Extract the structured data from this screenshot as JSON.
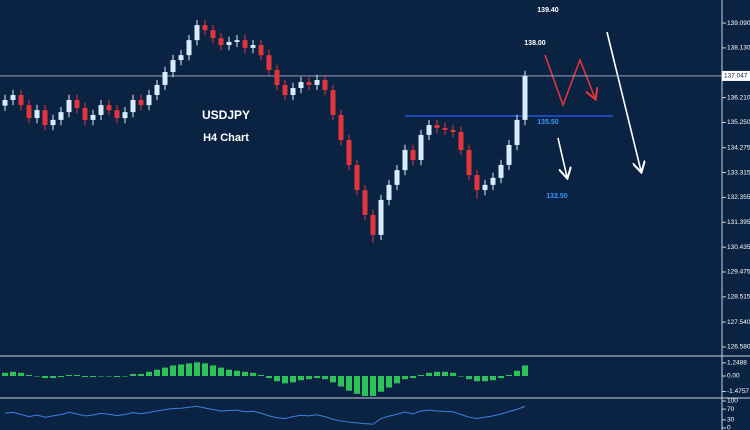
{
  "chart_data": [
    {
      "type": "candlestick",
      "annotations": [
        "USDJPY",
        "H4 Chart",
        "139.40",
        "138.00",
        "135.50",
        "132.50"
      ],
      "open": [
        135.9,
        136.12,
        136.31,
        135.92,
        135.42,
        135.73,
        135.15,
        135.35,
        135.65,
        136.12,
        135.81,
        135.35,
        135.54,
        135.92,
        135.73,
        135.42,
        135.65,
        136.12,
        135.92,
        136.31,
        136.7,
        137.2,
        137.66,
        137.85,
        138.43,
        139.01,
        138.82,
        138.51,
        138.24,
        138.36,
        138.43,
        138.13,
        138.24,
        137.85,
        137.28,
        136.7,
        136.31,
        136.58,
        136.81,
        136.7,
        136.89,
        136.5,
        135.54,
        134.57,
        133.61,
        132.64,
        131.68,
        130.91,
        132.26,
        132.84,
        133.41,
        134.19,
        133.8,
        134.77,
        135.15,
        135.04,
        134.96,
        134.88,
        134.19,
        133.22,
        132.64,
        132.84,
        133.11,
        133.61,
        134.38,
        135.35
      ],
      "high": [
        136.32,
        136.51,
        136.51,
        136.12,
        135.93,
        135.93,
        135.55,
        135.85,
        136.32,
        136.32,
        136.01,
        135.74,
        136.12,
        136.12,
        135.93,
        135.85,
        136.32,
        136.32,
        136.51,
        136.9,
        137.4,
        137.86,
        138.05,
        138.63,
        139.21,
        139.21,
        139.02,
        138.71,
        138.56,
        138.63,
        138.63,
        138.44,
        138.44,
        138.05,
        137.48,
        136.9,
        136.78,
        137.01,
        137.01,
        137.09,
        137.09,
        136.7,
        135.74,
        134.77,
        133.81,
        132.84,
        131.88,
        132.46,
        133.04,
        133.61,
        134.39,
        134.39,
        134.97,
        135.35,
        135.35,
        135.24,
        135.16,
        135.08,
        134.39,
        133.42,
        133.04,
        133.31,
        133.81,
        134.58,
        135.55,
        137.25
      ],
      "low": [
        135.7,
        135.92,
        135.72,
        135.22,
        135.22,
        134.95,
        134.95,
        135.15,
        135.45,
        135.61,
        135.15,
        135.15,
        135.34,
        135.53,
        135.22,
        135.22,
        135.45,
        135.72,
        135.72,
        136.11,
        136.5,
        137.0,
        137.46,
        137.65,
        138.23,
        138.62,
        138.31,
        138.04,
        138.04,
        138.16,
        137.93,
        137.93,
        137.65,
        137.08,
        136.5,
        136.11,
        136.11,
        136.38,
        136.5,
        136.5,
        136.3,
        135.34,
        134.37,
        133.41,
        132.44,
        131.48,
        130.6,
        130.71,
        132.06,
        132.64,
        133.21,
        133.6,
        133.6,
        134.57,
        134.84,
        134.76,
        134.68,
        133.99,
        133.02,
        132.3,
        132.44,
        132.64,
        132.91,
        133.41,
        134.18,
        135.15
      ],
      "close": [
        136.12,
        136.31,
        135.92,
        135.42,
        135.73,
        135.15,
        135.35,
        135.65,
        136.12,
        135.81,
        135.35,
        135.54,
        135.92,
        135.73,
        135.42,
        135.65,
        136.12,
        135.92,
        136.31,
        136.7,
        137.2,
        137.66,
        137.85,
        138.43,
        139.01,
        138.82,
        138.51,
        138.24,
        138.36,
        138.43,
        138.13,
        138.24,
        137.85,
        137.28,
        136.7,
        136.31,
        136.58,
        136.81,
        136.7,
        136.89,
        136.5,
        135.54,
        134.57,
        133.61,
        132.64,
        131.68,
        130.91,
        132.26,
        132.84,
        133.41,
        134.19,
        133.8,
        134.77,
        135.15,
        135.04,
        134.96,
        134.88,
        134.19,
        133.22,
        132.64,
        132.84,
        133.11,
        133.61,
        134.38,
        135.35,
        137.05
      ],
      "up_color": "#d8ecff",
      "down_color": "#e0353a",
      "current_price": 137.047,
      "ylim": [
        126.27,
        139.98
      ],
      "yticks": [
        {
          "value": 139.09,
          "label": "139.090"
        },
        {
          "value": 138.13,
          "label": "138.130"
        },
        {
          "value": 136.21,
          "label": "136.210"
        },
        {
          "value": 135.25,
          "label": "135.250"
        },
        134.275,
        133.315,
        132.355,
        131.395,
        130.435,
        129.475,
        128.515,
        {
          "value": 127.54,
          "label": "127.540"
        },
        {
          "value": 126.58,
          "label": "126.580"
        }
      ]
    },
    {
      "type": "bar",
      "values": [
        0.3,
        0.4,
        0.3,
        0.1,
        0.0,
        -0.2,
        -0.2,
        -0.1,
        0.1,
        0.1,
        -0.1,
        -0.1,
        0.0,
        0.0,
        -0.1,
        0.0,
        0.2,
        0.2,
        0.4,
        0.6,
        0.8,
        1.0,
        1.1,
        1.2,
        1.3,
        1.2,
        1.0,
        0.8,
        0.6,
        0.5,
        0.4,
        0.3,
        0.1,
        -0.2,
        -0.5,
        -0.7,
        -0.6,
        -0.4,
        -0.3,
        -0.2,
        -0.3,
        -0.6,
        -1.0,
        -1.4,
        -1.7,
        -1.9,
        -1.9,
        -1.5,
        -1.1,
        -0.7,
        -0.3,
        -0.2,
        0.1,
        0.3,
        0.4,
        0.4,
        0.3,
        0.0,
        -0.3,
        -0.5,
        -0.5,
        -0.4,
        -0.2,
        0.1,
        0.5,
        1.0
      ],
      "color": "#2fc25b",
      "ylim": [
        -2.0,
        1.81
      ],
      "yticks": [
        1.2488,
        {
          "value": 0,
          "label": "0.00"
        },
        -1.4757
      ]
    },
    {
      "type": "line",
      "values": [
        55,
        58,
        50,
        42,
        48,
        40,
        45,
        50,
        58,
        52,
        45,
        48,
        54,
        51,
        46,
        50,
        57,
        53,
        58,
        63,
        68,
        72,
        73,
        77,
        80,
        74,
        68,
        63,
        65,
        66,
        60,
        62,
        55,
        45,
        38,
        35,
        42,
        47,
        45,
        49,
        42,
        32,
        26,
        22,
        19,
        16,
        14,
        35,
        44,
        51,
        59,
        52,
        63,
        66,
        63,
        61,
        60,
        50,
        40,
        35,
        40,
        45,
        52,
        61,
        69,
        80
      ],
      "color": "#3d7fe0",
      "ylim": [
        -7.4,
        103.7
      ],
      "yticks": [
        100,
        70,
        30,
        0
      ]
    }
  ]
}
